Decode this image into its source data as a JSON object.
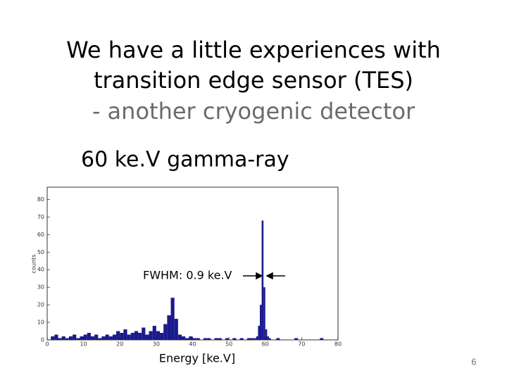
{
  "slide": {
    "title_lines": [
      "We have a little experiences with",
      "transition edge sensor (TES)"
    ],
    "subtitle": "- another cryogenic detector",
    "heading": "60 ke.V gamma-ray",
    "annotation": "FWHM: 0.9 ke.V",
    "page_number": "6"
  },
  "chart_data": {
    "type": "histogram",
    "x_label": "Energy [ke.V]",
    "y_label": "counts",
    "color": "#1a1a8c",
    "bins": [
      0,
      1,
      2,
      3,
      4,
      5,
      6,
      7,
      8,
      9,
      10,
      11,
      12,
      13,
      14,
      15,
      16,
      17,
      18,
      19,
      20,
      21,
      22,
      23,
      24,
      25,
      26,
      27,
      28,
      29,
      30,
      31,
      32,
      33,
      34,
      35,
      36,
      37,
      38,
      39,
      40,
      41,
      42,
      43,
      44,
      45,
      46,
      47,
      48,
      49,
      50,
      51,
      52,
      53,
      54,
      55,
      56,
      57,
      57.5,
      58,
      58.5,
      59,
      59.5,
      60,
      60.5,
      61,
      61.5,
      62,
      63,
      64,
      65,
      66,
      67,
      68,
      69,
      70,
      71,
      72,
      73,
      74,
      75,
      76,
      77,
      78,
      79,
      80
    ],
    "values": [
      0,
      2,
      3,
      1,
      2,
      1,
      2,
      3,
      1,
      2,
      3,
      4,
      2,
      3,
      1,
      2,
      3,
      2,
      3,
      5,
      4,
      6,
      3,
      4,
      5,
      4,
      7,
      3,
      5,
      8,
      5,
      4,
      9,
      14,
      24,
      12,
      3,
      2,
      1,
      2,
      1,
      1,
      0,
      1,
      1,
      0,
      1,
      1,
      0,
      1,
      0,
      1,
      0,
      1,
      0,
      1,
      1,
      1,
      2,
      8,
      20,
      68,
      30,
      6,
      2,
      1,
      0,
      0,
      1,
      0,
      0,
      0,
      0,
      1,
      0,
      0,
      0,
      0,
      0,
      0,
      1,
      0,
      0,
      0,
      0
    ],
    "xlim": [
      0,
      80
    ],
    "ylim": [
      0,
      87
    ],
    "xticks": [
      0,
      10,
      20,
      30,
      40,
      50,
      60,
      70,
      80
    ],
    "yticks": [
      0,
      10,
      20,
      30,
      40,
      50,
      60,
      70,
      80
    ]
  }
}
